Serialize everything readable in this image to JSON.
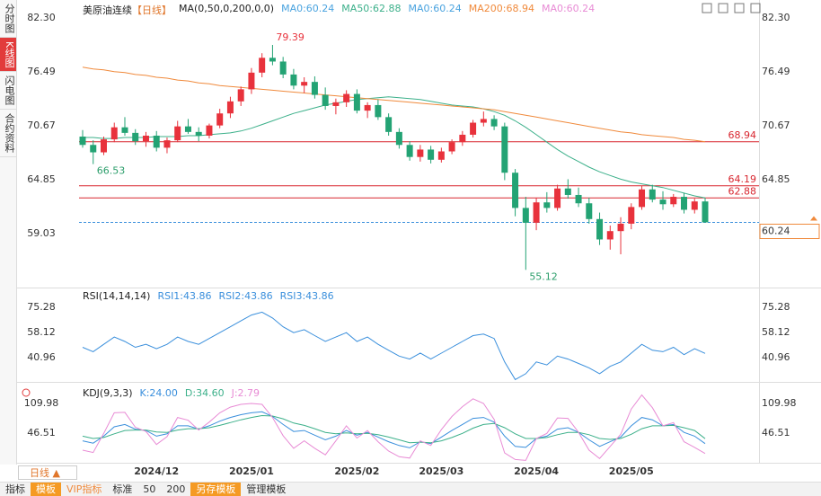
{
  "sidebar": {
    "tabs": [
      "分时图",
      "K线图",
      "闪电图",
      "合约资料"
    ],
    "active": 1
  },
  "chart_data": {
    "type": "candlestick",
    "title": "美原油连续",
    "period": "【日线】",
    "indicator": "MA(0,50,0,200,0,0)",
    "readouts": [
      {
        "text": "MA0:60.24",
        "color": "#4aa3df"
      },
      {
        "text": "MA50:62.88",
        "color": "#3cb08a"
      },
      {
        "text": "MA0:60.24",
        "color": "#4aa3df"
      },
      {
        "text": "MA200:68.94",
        "color": "#f08a3c"
      },
      {
        "text": "MA0:60.24",
        "color": "#e88bd5"
      }
    ],
    "categories": [
      null,
      null,
      null,
      null,
      null,
      null,
      null,
      "2024/12",
      null,
      null,
      null,
      null,
      null,
      null,
      null,
      null,
      "2025/01",
      null,
      null,
      null,
      null,
      null,
      null,
      null,
      null,
      null,
      "2025/02",
      null,
      null,
      null,
      null,
      null,
      null,
      null,
      "2025/03",
      null,
      null,
      null,
      null,
      null,
      null,
      null,
      null,
      "2025/04",
      null,
      null,
      null,
      null,
      null,
      null,
      null,
      null,
      "2025/05",
      null,
      null,
      null,
      null,
      null,
      null,
      null
    ],
    "ohlc": [
      [
        69.5,
        70.2,
        68.3,
        68.6
      ],
      [
        68.6,
        69.1,
        66.53,
        67.8
      ],
      [
        67.8,
        69.5,
        67.5,
        69.2
      ],
      [
        69.2,
        71.0,
        68.9,
        70.5
      ],
      [
        70.5,
        71.6,
        69.6,
        69.9
      ],
      [
        69.9,
        70.3,
        68.6,
        69.0
      ],
      [
        69.0,
        70.0,
        68.4,
        69.6
      ],
      [
        69.6,
        70.1,
        67.9,
        68.3
      ],
      [
        68.3,
        69.4,
        67.7,
        69.1
      ],
      [
        69.1,
        71.2,
        68.9,
        70.6
      ],
      [
        70.6,
        71.4,
        69.8,
        70.0
      ],
      [
        70.0,
        70.5,
        69.0,
        69.6
      ],
      [
        69.6,
        70.9,
        69.3,
        70.7
      ],
      [
        70.7,
        72.5,
        70.4,
        72.0
      ],
      [
        72.0,
        73.8,
        71.5,
        73.3
      ],
      [
        73.3,
        74.9,
        72.8,
        74.6
      ],
      [
        74.6,
        76.9,
        74.1,
        76.4
      ],
      [
        76.4,
        78.5,
        75.9,
        78.0
      ],
      [
        78.0,
        79.39,
        77.2,
        77.6
      ],
      [
        77.6,
        78.1,
        75.8,
        76.2
      ],
      [
        76.2,
        76.8,
        74.6,
        75.0
      ],
      [
        75.0,
        75.9,
        74.2,
        75.4
      ],
      [
        75.4,
        76.0,
        73.6,
        74.0
      ],
      [
        74.0,
        74.8,
        72.4,
        72.8
      ],
      [
        72.8,
        73.6,
        71.9,
        73.2
      ],
      [
        73.2,
        74.5,
        72.7,
        74.1
      ],
      [
        74.1,
        74.6,
        72.0,
        72.3
      ],
      [
        72.3,
        73.2,
        71.5,
        72.9
      ],
      [
        72.9,
        73.5,
        71.3,
        71.6
      ],
      [
        71.6,
        72.0,
        69.6,
        70.0
      ],
      [
        70.0,
        70.4,
        68.2,
        68.6
      ],
      [
        68.6,
        69.0,
        66.9,
        67.3
      ],
      [
        67.3,
        68.6,
        66.8,
        68.1
      ],
      [
        68.1,
        68.5,
        66.6,
        67.0
      ],
      [
        67.0,
        68.3,
        66.7,
        67.9
      ],
      [
        67.9,
        69.2,
        67.6,
        68.9
      ],
      [
        68.9,
        70.1,
        68.5,
        69.7
      ],
      [
        69.7,
        71.3,
        69.4,
        71.0
      ],
      [
        71.0,
        72.2,
        70.6,
        71.4
      ],
      [
        71.4,
        71.8,
        70.2,
        70.6
      ],
      [
        70.6,
        71.0,
        64.8,
        65.6
      ],
      [
        65.6,
        66.0,
        60.9,
        61.8
      ],
      [
        61.8,
        63.0,
        55.12,
        60.2
      ],
      [
        60.2,
        62.9,
        59.4,
        62.4
      ],
      [
        62.4,
        63.5,
        61.3,
        61.8
      ],
      [
        61.8,
        64.3,
        61.5,
        63.9
      ],
      [
        63.9,
        64.9,
        62.8,
        63.2
      ],
      [
        63.2,
        64.0,
        61.9,
        62.3
      ],
      [
        62.3,
        62.9,
        60.1,
        60.6
      ],
      [
        60.6,
        61.3,
        57.8,
        58.4
      ],
      [
        58.4,
        59.9,
        57.3,
        59.3
      ],
      [
        59.3,
        60.8,
        56.8,
        60.1
      ],
      [
        60.1,
        62.3,
        59.5,
        61.9
      ],
      [
        61.9,
        64.2,
        61.6,
        63.8
      ],
      [
        63.8,
        64.3,
        62.4,
        62.7
      ],
      [
        62.7,
        63.6,
        61.6,
        62.2
      ],
      [
        62.2,
        63.3,
        61.9,
        63.0
      ],
      [
        63.0,
        63.4,
        61.2,
        61.6
      ],
      [
        61.6,
        62.8,
        61.2,
        62.5
      ],
      [
        62.5,
        62.9,
        60.2,
        60.24
      ]
    ],
    "up_color": "#e8323c",
    "down_color": "#23a374",
    "ylim": [
      53.21,
      82.3
    ],
    "yticks": [
      {
        "value": 82.3,
        "label": "82.30"
      },
      76.49,
      70.67,
      64.85,
      59.03
    ],
    "series": [
      {
        "color": "#3cb08a",
        "values": [
          69.4,
          69.4,
          69.3,
          69.3,
          69.4,
          69.4,
          69.4,
          69.5,
          69.5,
          69.5,
          69.6,
          69.6,
          69.7,
          69.8,
          69.9,
          70.1,
          70.4,
          70.8,
          71.2,
          71.6,
          72.0,
          72.3,
          72.6,
          72.9,
          73.1,
          73.3,
          73.5,
          73.6,
          73.7,
          73.8,
          73.7,
          73.6,
          73.5,
          73.3,
          73.1,
          72.9,
          72.8,
          72.7,
          72.5,
          72.2,
          71.8,
          71.2,
          70.5,
          69.7,
          68.9,
          68.1,
          67.4,
          66.8,
          66.2,
          65.7,
          65.3,
          64.9,
          64.6,
          64.4,
          64.2,
          64.0,
          63.7,
          63.4,
          63.1,
          62.88
        ]
      },
      {
        "color": "#f08a3c",
        "values": [
          77.0,
          76.8,
          76.7,
          76.5,
          76.4,
          76.2,
          76.1,
          75.9,
          75.8,
          75.6,
          75.5,
          75.3,
          75.2,
          75.0,
          74.9,
          74.8,
          74.7,
          74.6,
          74.5,
          74.4,
          74.3,
          74.2,
          74.1,
          74.0,
          73.9,
          73.8,
          73.7,
          73.6,
          73.5,
          73.4,
          73.3,
          73.2,
          73.1,
          73.0,
          72.9,
          72.8,
          72.7,
          72.6,
          72.5,
          72.4,
          72.2,
          72.0,
          71.8,
          71.6,
          71.4,
          71.2,
          71.0,
          70.8,
          70.6,
          70.4,
          70.2,
          70.0,
          69.9,
          69.7,
          69.6,
          69.5,
          69.4,
          69.2,
          69.1,
          68.94
        ]
      }
    ],
    "levels": [
      {
        "value": 68.94,
        "color": "#d8262f"
      },
      {
        "value": 64.19,
        "color": "#d8262f"
      },
      {
        "value": 62.88,
        "color": "#d8262f"
      }
    ],
    "last_price": {
      "value": 60.24,
      "color": "#3a8fdc",
      "box_color": "#f08a3c"
    },
    "annotations": [
      {
        "value": 79.39,
        "index": 18,
        "color": "#e8323c",
        "place": "above"
      },
      {
        "value": 66.53,
        "index": 1,
        "color": "#2a9d6a",
        "place": "below"
      },
      {
        "value": 55.12,
        "index": 42,
        "color": "#2a9d6a",
        "place": "below"
      }
    ],
    "rsi": {
      "type": "line",
      "title": "RSI(14,14,14)",
      "readouts": [
        {
          "text": "RSI1:43.86",
          "color": "#3a8fdc"
        },
        {
          "text": "RSI2:43.86",
          "color": "#3a8fdc"
        },
        {
          "text": "RSI3:43.86",
          "color": "#3a8fdc"
        }
      ],
      "ylim": [
        24.41,
        85.7
      ],
      "yticks": [
        75.28,
        58.12,
        40.96
      ],
      "series": [
        {
          "color": "#3a8fdc",
          "values": [
            48,
            45,
            50,
            55,
            52,
            48,
            50,
            47,
            50,
            55,
            52,
            50,
            54,
            58,
            62,
            66,
            70,
            72,
            68,
            62,
            58,
            60,
            56,
            52,
            55,
            58,
            52,
            55,
            50,
            46,
            42,
            40,
            44,
            40,
            44,
            48,
            52,
            56,
            57,
            54,
            38,
            26,
            30,
            38,
            36,
            42,
            40,
            37,
            34,
            30,
            35,
            38,
            44,
            50,
            46,
            45,
            48,
            43,
            47,
            43.86
          ]
        }
      ]
    },
    "kdj": {
      "type": "line",
      "title": "KDJ(9,3,3)",
      "readouts": [
        {
          "text": "K:24.00",
          "color": "#3a8fdc"
        },
        {
          "text": "D:34.60",
          "color": "#3cb08a"
        },
        {
          "text": "J:2.79",
          "color": "#e88bd5"
        }
      ],
      "ylim": [
        -16.95,
        146.5
      ],
      "yticks": [
        109.98,
        46.51
      ],
      "series": [
        {
          "color": "#3a8fdc",
          "values": [
            30,
            25,
            40,
            60,
            65,
            55,
            52,
            40,
            45,
            62,
            62,
            55,
            62,
            72,
            80,
            86,
            90,
            92,
            82,
            65,
            50,
            52,
            42,
            32,
            40,
            52,
            42,
            48,
            38,
            28,
            20,
            15,
            28,
            24,
            38,
            52,
            65,
            78,
            80,
            70,
            40,
            18,
            16,
            35,
            40,
            55,
            58,
            48,
            32,
            18,
            28,
            38,
            62,
            80,
            75,
            62,
            65,
            48,
            40,
            24
          ]
        },
        {
          "color": "#3cb08a",
          "values": [
            40,
            35,
            37,
            45,
            52,
            53,
            53,
            49,
            48,
            53,
            56,
            56,
            58,
            63,
            69,
            75,
            80,
            84,
            83,
            77,
            68,
            63,
            56,
            48,
            45,
            47,
            45,
            46,
            43,
            38,
            32,
            26,
            27,
            26,
            30,
            37,
            46,
            57,
            65,
            67,
            58,
            45,
            35,
            35,
            37,
            43,
            48,
            48,
            43,
            35,
            33,
            35,
            44,
            56,
            62,
            62,
            63,
            58,
            52,
            34.6
          ]
        },
        {
          "color": "#e88bd5",
          "values": [
            10,
            5,
            46,
            90,
            91,
            59,
            50,
            22,
            39,
            80,
            74,
            53,
            70,
            90,
            102,
            108,
            110,
            108,
            80,
            41,
            14,
            30,
            14,
            0,
            30,
            62,
            36,
            52,
            28,
            8,
            -4,
            -7,
            30,
            20,
            54,
            82,
            103,
            120,
            110,
            76,
            4,
            -10,
            -12,
            35,
            46,
            79,
            78,
            48,
            10,
            -8,
            18,
            44,
            98,
            128,
            101,
            62,
            69,
            28,
            16,
            2.79
          ]
        }
      ]
    }
  },
  "period_tab": "日线",
  "toolbar": {
    "items": [
      {
        "text": "指标",
        "style": "plain"
      },
      {
        "text": "模板",
        "style": "filled"
      },
      {
        "text": "VIP指标",
        "style": "accent"
      },
      {
        "text": "标准",
        "style": "plain"
      },
      {
        "text": "50",
        "style": "plain"
      },
      {
        "text": "200",
        "style": "plain"
      },
      {
        "text": "另存模板",
        "style": "filled"
      },
      {
        "text": "管理模板",
        "style": "plain"
      }
    ]
  }
}
